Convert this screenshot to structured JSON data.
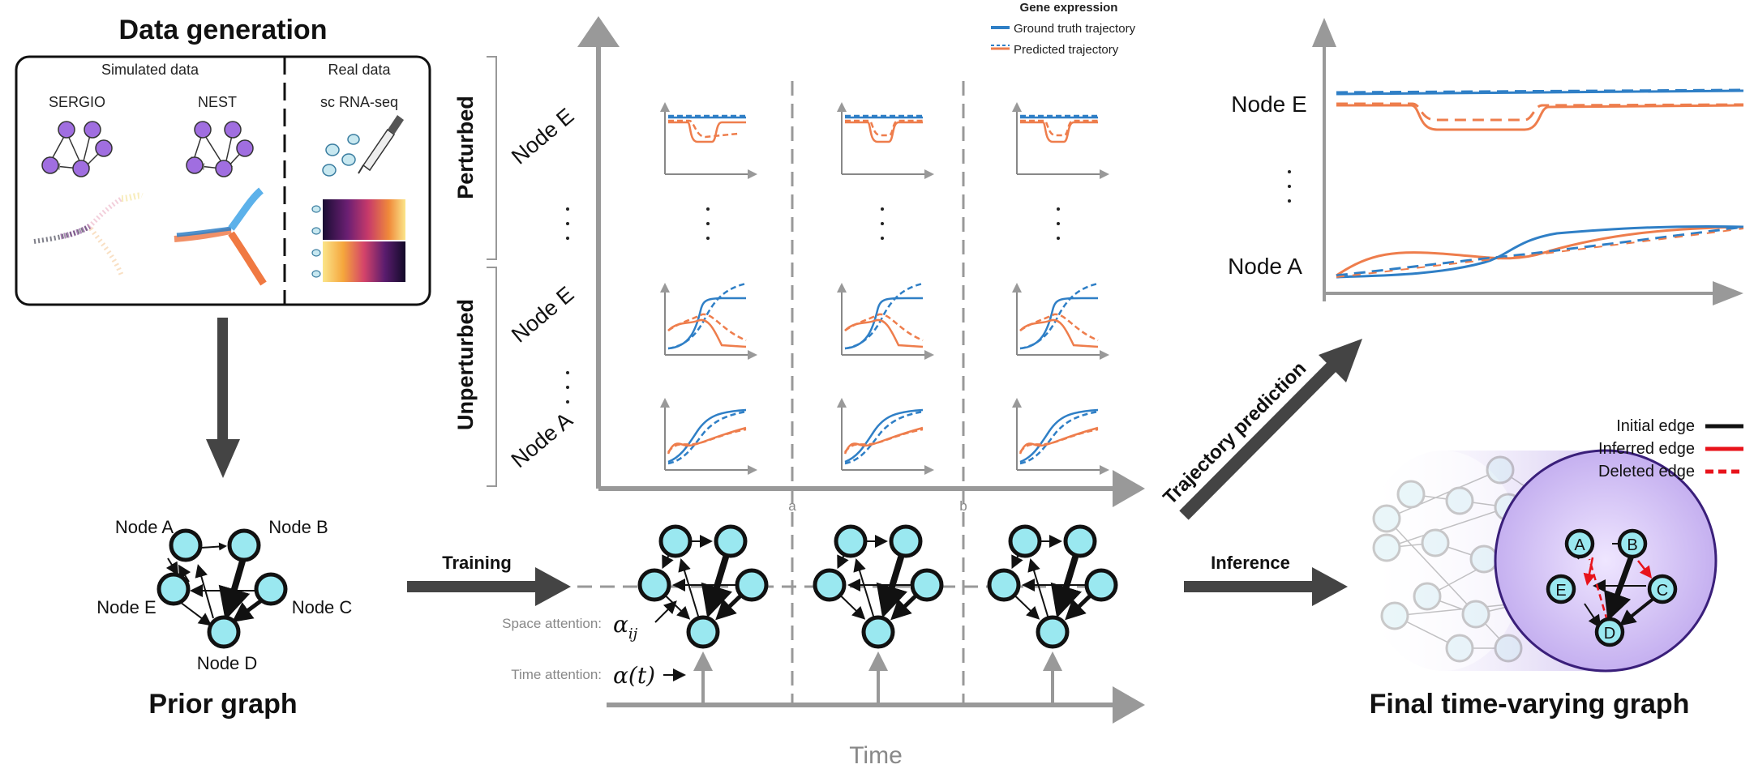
{
  "data_generation": {
    "title": "Data generation",
    "simulated_label": "Simulated data",
    "real_label": "Real data",
    "sergio": "SERGIO",
    "nest": "NEST",
    "scrna": "sc RNA-seq"
  },
  "prior_graph": {
    "title": "Prior graph",
    "nodes": {
      "a": "Node A",
      "b": "Node B",
      "c": "Node C",
      "d": "Node D",
      "e": "Node E"
    }
  },
  "training_label": "Training",
  "inference_label": "Inference",
  "trajectory_prediction_label": "Trajectory prediction",
  "main_panel": {
    "perturbed": "Perturbed",
    "unperturbed": "Unperturbed",
    "row_labels": [
      "Node E",
      "Node E",
      "Node A"
    ],
    "legend": {
      "title": "Gene expression",
      "ground_truth": "Ground truth trajectory",
      "predicted": "Predicted trajectory"
    },
    "tick_a": "a",
    "tick_b": "b",
    "space_attention": "Space attention:",
    "space_symbol": "α",
    "space_subscript": "ij",
    "time_attention": "Time attention:",
    "time_symbol": "α(t)",
    "time_axis": "Time"
  },
  "trajectory_panel": {
    "node_e": "Node E",
    "node_a": "Node A"
  },
  "final_graph": {
    "title": "Final time-varying graph",
    "legend": {
      "initial": "Initial edge",
      "inferred": "Inferred edge",
      "deleted": "Deleted edge"
    },
    "nodes": {
      "a": "A",
      "b": "B",
      "c": "C",
      "d": "D",
      "e": "E"
    }
  },
  "colors": {
    "ground_truth": "#2f7fc6",
    "predicted": "#ee7d4c",
    "node_fill": "#9ae8f0",
    "purple_node": "#a06ee0",
    "arrow_dark": "#444444",
    "axis_gray": "#999999",
    "inferred_red": "#e8131b",
    "cylinder_purple": "#c7b5ec"
  }
}
